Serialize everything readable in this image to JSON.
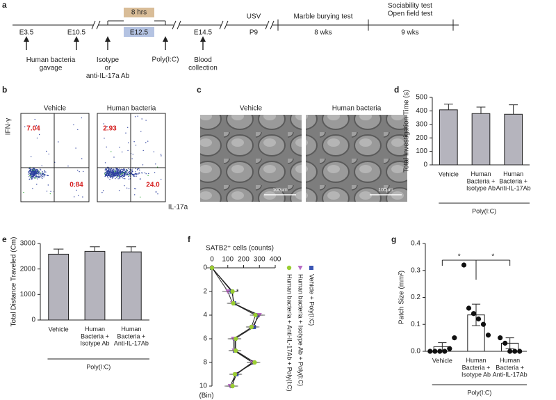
{
  "panel_labels": [
    "a",
    "b",
    "c",
    "d",
    "e",
    "f",
    "g"
  ],
  "timeline": {
    "stages": [
      "E3.5",
      "E10.5",
      "E12.5",
      "E14.5",
      "P9",
      "8 wks",
      "9 wks"
    ],
    "duration": "8 hrs",
    "above": [
      "USV",
      "Marble burying test",
      "Sociability test\nOpen field test"
    ],
    "events": [
      "Human bacteria\ngavage",
      "Isotype\nor\nanti-IL-17a Ab",
      "Poly(I:C)",
      "Blood\ncollection"
    ]
  },
  "flow": {
    "y_label": "IFN-γ",
    "x_label": "IL-17a",
    "plots": [
      {
        "title": "Vehicle",
        "quadrants": [
          "7.04",
          "0.84"
        ]
      },
      {
        "title": "Human bacteria",
        "quadrants": [
          "2.93",
          "24.0"
        ]
      }
    ]
  },
  "micrograph": {
    "images": [
      {
        "title": "Vehicle",
        "scale": "100μm"
      },
      {
        "title": "Human bacteria",
        "scale": "100μm"
      }
    ]
  },
  "chart_data": [
    {
      "type": "bar",
      "y_label": "Total Investigation Time (s)",
      "categories": [
        "Vehicle",
        "Human\nBacteria +\nIsotype Ab",
        "Human\nBacteria +\nAnti-IL-17Ab"
      ],
      "values": [
        408,
        380,
        375
      ],
      "errors": [
        42,
        48,
        70
      ],
      "color": "#b5b4bd",
      "ylim": [
        0,
        500
      ],
      "yticks": [
        0,
        100,
        200,
        300,
        400,
        500
      ],
      "group_label": "Poly(I:C)"
    },
    {
      "type": "bar",
      "y_label": "Total Distance Traveled (Cm)",
      "categories": [
        "Vehicle",
        "Human\nBacteria +\nIsotype Ab",
        "Human\nBacteria +\nAnti-IL-17Ab"
      ],
      "values": [
        2580,
        2690,
        2670
      ],
      "errors": [
        200,
        180,
        200
      ],
      "color": "#b5b4bd",
      "ylim": [
        0,
        3000
      ],
      "yticks": [
        0,
        1000,
        2000,
        3000
      ],
      "group_label": "Poly(I:C)"
    },
    {
      "type": "line",
      "x_label": "SATB2⁺ cells  (counts)",
      "y_label": "(Bin)",
      "bins": [
        0,
        2,
        3,
        4,
        5,
        6,
        7,
        8,
        9,
        10
      ],
      "xlim": [
        0,
        400
      ],
      "xticks": [
        0,
        100,
        200,
        300,
        400
      ],
      "ylim": [
        0,
        10
      ],
      "yticks": [
        0,
        2,
        4,
        6,
        8,
        10
      ],
      "series": [
        {
          "name": "Vehicle + Poly(I:C)",
          "color": "#3a55b4",
          "marker": "square",
          "values": [
            0,
            125,
            140,
            290,
            265,
            145,
            145,
            260,
            155,
            125
          ]
        },
        {
          "name": "Human bacteria + Isotype Ab + Poly(I:C)",
          "color": "#b86bc4",
          "marker": "triangle",
          "values": [
            0,
            100,
            130,
            300,
            255,
            135,
            140,
            255,
            150,
            115
          ]
        },
        {
          "name": "Human bacteria + Anti-IL-17Ab + Poly(I:C)",
          "color": "#9acd32",
          "marker": "circle",
          "values": [
            0,
            130,
            135,
            275,
            250,
            150,
            150,
            270,
            145,
            130
          ]
        }
      ],
      "annotations": [
        "*"
      ]
    },
    {
      "type": "bar_dot",
      "y_label": "Patch Size (mm²)",
      "categories": [
        "Vehicle",
        "Human\nBacteria +\nIsotype Ab",
        "Human\nBacteria +\nAnti-IL-17Ab"
      ],
      "values": [
        0.017,
        0.135,
        0.03
      ],
      "errors": [
        0.015,
        0.04,
        0.02
      ],
      "color": "#ffffff",
      "points": [
        [
          0,
          0,
          0,
          0,
          0.01,
          0.05
        ],
        [
          0.32,
          0.16,
          0.14,
          0.12,
          0.1,
          0.06
        ],
        [
          0.05,
          0.03,
          0,
          0,
          0
        ]
      ],
      "ylim": [
        0,
        0.4
      ],
      "yticks": [
        {
          "value": 0,
          "label": "0.0"
        },
        {
          "value": 0.1,
          "label": "0.1"
        },
        {
          "value": 0.2,
          "label": "0.2"
        },
        {
          "value": 0.3,
          "label": "0.3"
        },
        {
          "value": 0.4,
          "label": "0.4"
        }
      ],
      "annotations": [
        "*",
        "*"
      ],
      "group_label": "Poly(I:C)"
    }
  ]
}
